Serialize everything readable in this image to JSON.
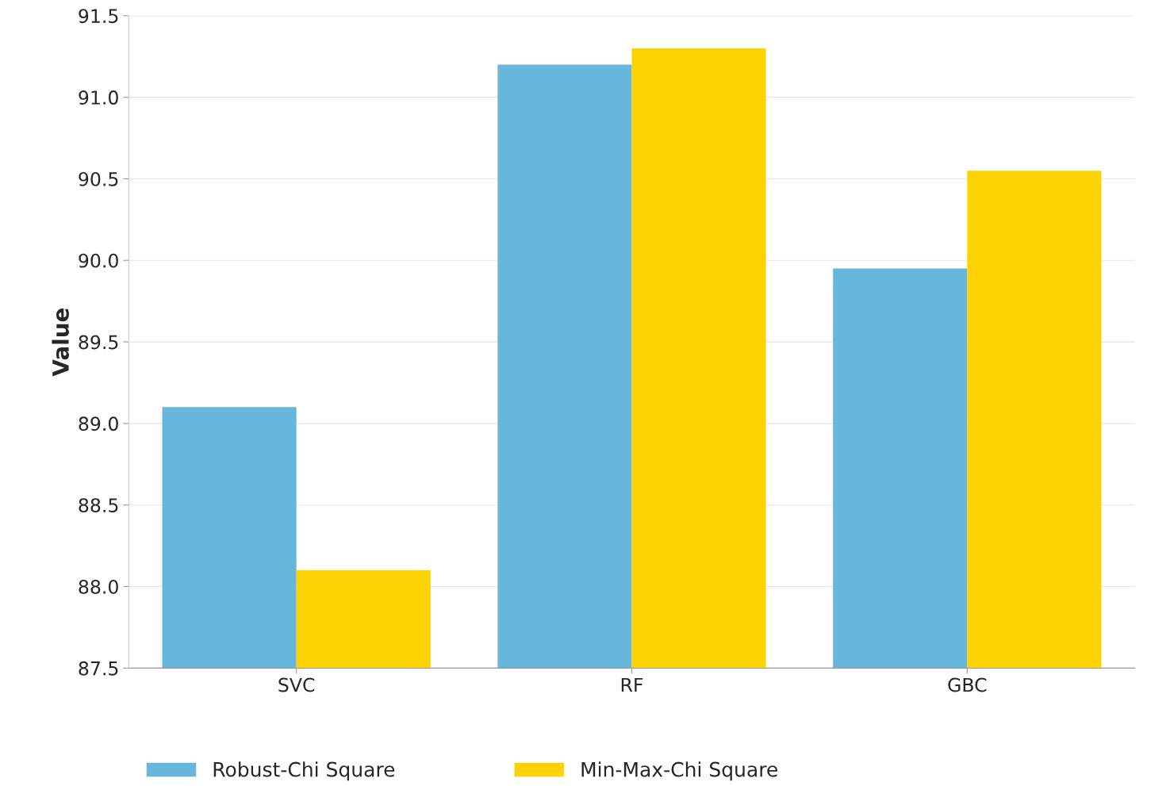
{
  "chart_data": {
    "type": "bar",
    "ylabel": "Value",
    "categories": [
      "SVC",
      "RF",
      "GBC"
    ],
    "series": [
      {
        "name": "Robust-Chi Square",
        "color": "#67b6dc",
        "values": [
          89.1,
          91.2,
          89.95
        ]
      },
      {
        "name": "Min-Max-Chi Square",
        "color": "#fcd202",
        "values": [
          88.1,
          91.3,
          90.55
        ]
      }
    ],
    "ylim": [
      87.5,
      91.5
    ],
    "yticks": [
      {
        "value": 87.5,
        "label": "87.5"
      },
      {
        "value": 88.0,
        "label": "88.0"
      },
      {
        "value": 88.5,
        "label": "88.5"
      },
      {
        "value": 89.0,
        "label": "89.0"
      },
      {
        "value": 89.5,
        "label": "89.5"
      },
      {
        "value": 90.0,
        "label": "90.0"
      },
      {
        "value": 90.5,
        "label": "90.5"
      },
      {
        "value": 91.0,
        "label": "91.0"
      },
      {
        "value": 91.5,
        "label": "91.5"
      }
    ],
    "grid": true,
    "legend": "bottom"
  }
}
